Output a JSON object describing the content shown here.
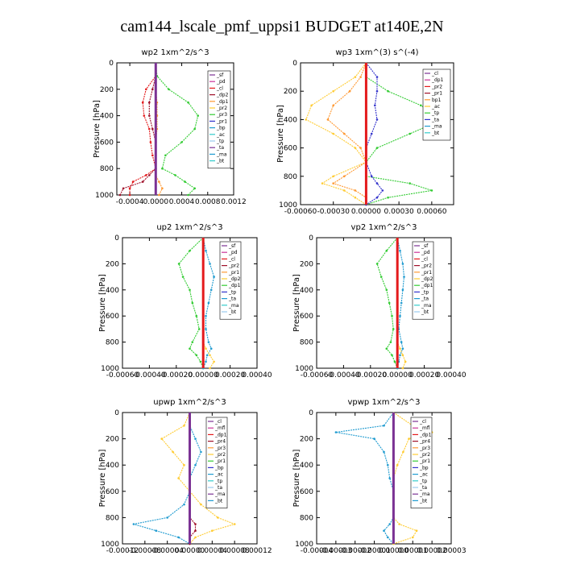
{
  "figure": {
    "title": "cam144_lscale_pmf_uppsi1  BUDGET at140E,2N"
  },
  "colors": {
    "red": "#e41a1c",
    "darkred": "#a0102a",
    "purple": "#7b3294",
    "green": "#33cc33",
    "orange": "#ff9933",
    "yellow": "#ffcc33",
    "blue": "#3333cc",
    "teal": "#1f9bd0",
    "cyan": "#33cccc",
    "lightblue": "#99ccee",
    "magenta": "#cc3399"
  },
  "chart_data": [
    {
      "type": "line",
      "title": "wp2   1xm^2/s^3",
      "ylabel": "Pressure [hPa]",
      "xlim": [
        -0.0006,
        0.0012
      ],
      "ylim": [
        1000,
        0
      ],
      "xticks": [
        "-0.0004",
        "0.0000",
        "0.0004",
        "0.0008",
        "0.0012"
      ],
      "xtick_values": [
        -0.0004,
        0.0,
        0.0004,
        0.0008,
        0.0012
      ],
      "yticks": [
        "0",
        "200",
        "400",
        "600",
        "800",
        "1000"
      ],
      "levels": [
        100,
        200,
        300,
        400,
        500,
        600,
        700,
        800,
        850,
        900,
        950,
        1000
      ],
      "legend": [
        "_sf",
        "_pd",
        "_cl",
        "_dp2",
        "_dp1",
        "_pr2",
        "_pr3",
        "_pr1",
        "_bp",
        "_ac",
        "_tp",
        "_ta",
        "_ma",
        "_bt"
      ],
      "series": [
        {
          "name": "_dp1",
          "color": "green",
          "values": [
            2e-05,
            0.0002,
            0.0005,
            0.00065,
            0.0006,
            0.0004,
            0.00015,
            0.0001,
            0.0003,
            0.00045,
            0.0006,
            0.0005
          ]
        },
        {
          "name": "_dp2",
          "color": "red",
          "values": [
            0.0,
            -0.00015,
            -0.0002,
            -0.00018,
            -0.0001,
            -8e-05,
            -5e-05,
            0.0,
            -0.00015,
            -0.00035,
            -0.0004,
            -0.0004
          ]
        },
        {
          "name": "_pr1",
          "color": "darkred",
          "values": [
            0.0,
            -5e-05,
            -0.0001,
            -0.0001,
            -5e-05,
            0.0,
            0.0,
            0.0,
            -0.0001,
            -0.0002,
            -0.0005,
            -0.00055
          ]
        },
        {
          "name": "_pr2",
          "color": "orange",
          "values": [
            0.0,
            0.0,
            2e-05,
            2e-05,
            2e-05,
            0.0,
            0.0,
            0.0,
            0.0,
            5e-05,
            0.0001,
            5e-05
          ]
        },
        {
          "name": "_cl",
          "color": "purple",
          "values": [
            0.0,
            0.0,
            0.0,
            0.0,
            0.0,
            0.0,
            0.0,
            0.0,
            0.0,
            0.0,
            0.0,
            0.0
          ]
        }
      ]
    },
    {
      "type": "line",
      "title": "wp3   1xm^(3) s^(-4)",
      "ylabel": "Pressure [hPa]",
      "xlim": [
        -0.0006,
        0.0008
      ],
      "ylim": [
        1000,
        0
      ],
      "xticks": [
        "-0.00060",
        "-0.00030",
        "0.00000",
        "0.00030",
        "0.00060"
      ],
      "xtick_values": [
        -0.0006,
        -0.0003,
        0.0,
        0.0003,
        0.0006
      ],
      "yticks": [
        "0",
        "200",
        "400",
        "600",
        "800",
        "1000"
      ],
      "levels": [
        100,
        200,
        300,
        400,
        500,
        600,
        700,
        800,
        850,
        900,
        950,
        1000
      ],
      "legend": [
        "_cl",
        "_dp1",
        "_pr2",
        "_pr1",
        "bp1",
        "_ac",
        "_tp",
        "_ta",
        "_ma",
        "_bt"
      ],
      "series": [
        {
          "name": "bp1",
          "color": "green",
          "values": [
            0.0,
            0.0002,
            0.0005,
            0.0007,
            0.0004,
            0.0001,
            0.0,
            0.0,
            0.0004,
            0.0006,
            0.0002,
            0.0
          ]
        },
        {
          "name": "_pr1",
          "color": "yellow",
          "values": [
            -0.0001,
            -0.0003,
            -0.0005,
            -0.00055,
            -0.0003,
            -0.0001,
            0.0,
            -0.0003,
            -0.0004,
            -0.0002,
            -0.0001,
            0.0
          ]
        },
        {
          "name": "_pr2",
          "color": "orange",
          "values": [
            -5e-05,
            -0.00015,
            -0.0003,
            -0.00035,
            -0.0002,
            -5e-05,
            0.0,
            -0.0002,
            -0.0003,
            -0.0001,
            0.0,
            0.0
          ]
        },
        {
          "name": "_tp",
          "color": "blue",
          "values": [
            0.0001,
            0.0001,
            8e-05,
            0.0001,
            5e-05,
            0.0,
            0.0,
            5e-05,
            0.0001,
            0.00015,
            0.0001,
            0.0
          ]
        },
        {
          "name": "_dp1",
          "color": "red",
          "values": [
            0.0,
            0.0,
            0.0,
            0.0,
            0.0,
            0.0,
            0.0,
            0.0,
            0.0,
            0.0,
            0.0,
            0.0
          ]
        }
      ]
    },
    {
      "type": "line",
      "title": "up2   1xm^2/s^3",
      "ylabel": "Pressure [hPa]",
      "xlim": [
        -0.0006,
        0.0004
      ],
      "ylim": [
        1000,
        0
      ],
      "xticks": [
        "-0.00060",
        "-0.00040",
        "-0.00020",
        "0.00000",
        "0.00020",
        "0.00040"
      ],
      "xtick_values": [
        -0.0006,
        -0.0004,
        -0.0002,
        0.0,
        0.0002,
        0.0004
      ],
      "yticks": [
        "0",
        "200",
        "400",
        "600",
        "800",
        "1000"
      ],
      "levels": [
        100,
        200,
        300,
        400,
        500,
        600,
        700,
        800,
        850,
        900,
        950,
        1000
      ],
      "legend": [
        "_sf",
        "_pd",
        "_cl",
        "_pr2",
        "_pr1",
        "_dp2",
        "_dp1",
        "_tp",
        "_ta",
        "_ma",
        "_bt"
      ],
      "series": [
        {
          "name": "_dp1",
          "color": "green",
          "values": [
            -0.0001,
            -0.00018,
            -0.00015,
            -0.0001,
            -8e-05,
            -5e-05,
            -3e-05,
            -8e-05,
            -0.0001,
            -5e-05,
            -2e-05,
            0.0
          ]
        },
        {
          "name": "_tp",
          "color": "teal",
          "values": [
            2e-05,
            5e-05,
            8e-05,
            6e-05,
            4e-05,
            2e-05,
            2e-05,
            4e-05,
            6e-05,
            3e-05,
            2e-05,
            0.0
          ]
        },
        {
          "name": "_pr1",
          "color": "yellow",
          "values": [
            0.0,
            0.0,
            0.0,
            0.0,
            0.0,
            0.0,
            0.0,
            0.0,
            2e-05,
            5e-05,
            8e-05,
            5e-05
          ]
        },
        {
          "name": "_dp2",
          "color": "red",
          "values": [
            0.0,
            0.0,
            0.0,
            0.0,
            0.0,
            0.0,
            0.0,
            0.0,
            0.0,
            0.0,
            0.0,
            0.0
          ]
        }
      ]
    },
    {
      "type": "line",
      "title": "vp2   1xm^2/s^3",
      "ylabel": "Pressure [hPa]",
      "xlim": [
        -0.0006,
        0.0004
      ],
      "ylim": [
        1000,
        0
      ],
      "xticks": [
        "-0.00060",
        "-0.00040",
        "-0.00020",
        "0.00000",
        "0.00020",
        "0.00040"
      ],
      "xtick_values": [
        -0.0006,
        -0.0004,
        -0.0002,
        0.0,
        0.0002,
        0.0004
      ],
      "yticks": [
        "0",
        "200",
        "400",
        "600",
        "800",
        "1000"
      ],
      "levels": [
        100,
        200,
        300,
        400,
        500,
        600,
        700,
        800,
        850,
        900,
        950,
        1000
      ],
      "legend": [
        "_sf",
        "_pd",
        "_cl",
        "_pr2",
        "_pr1",
        "_dp2",
        "_dp1",
        "_tp",
        "_ta",
        "_ma",
        "_bt"
      ],
      "series": [
        {
          "name": "_dp1",
          "color": "green",
          "values": [
            -8e-05,
            -0.00015,
            -0.00012,
            -8e-05,
            -6e-05,
            -4e-05,
            -3e-05,
            -5e-05,
            -8e-05,
            -4e-05,
            -2e-05,
            0.0
          ]
        },
        {
          "name": "_tp",
          "color": "teal",
          "values": [
            2e-05,
            4e-05,
            5e-05,
            4e-05,
            3e-05,
            2e-05,
            1e-05,
            3e-05,
            4e-05,
            2e-05,
            1e-05,
            0.0
          ]
        },
        {
          "name": "_pr1",
          "color": "yellow",
          "values": [
            0.0,
            0.0,
            0.0,
            0.0,
            0.0,
            0.0,
            0.0,
            0.0,
            2e-05,
            4e-05,
            6e-05,
            4e-05
          ]
        },
        {
          "name": "_dp2",
          "color": "red",
          "values": [
            0.0,
            0.0,
            0.0,
            0.0,
            0.0,
            0.0,
            0.0,
            0.0,
            0.0,
            0.0,
            0.0,
            0.0
          ]
        }
      ]
    },
    {
      "type": "line",
      "title": "upwp   1xm^2/s^3",
      "ylabel": "Pressure [hPa]",
      "xlim": [
        -0.00012,
        0.00012
      ],
      "ylim": [
        1000,
        0
      ],
      "xticks": [
        "-0.00012",
        "-0.00008",
        "-0.00004",
        "0.00000",
        "0.00004",
        "0.00008",
        "0.00012"
      ],
      "xtick_values": [
        -0.00012,
        -8e-05,
        -4e-05,
        0.0,
        4e-05,
        8e-05,
        0.00012
      ],
      "yticks": [
        "0",
        "200",
        "400",
        "600",
        "800",
        "1000"
      ],
      "levels": [
        100,
        200,
        300,
        400,
        500,
        600,
        700,
        800,
        850,
        900,
        950,
        1000
      ],
      "legend": [
        "_cl",
        "_mfl",
        "_dp1",
        "_pr4",
        "_pr3",
        "_pr2",
        "_pr1",
        "_bp",
        "_ac",
        "_tp",
        "_ta",
        "_ma",
        "_bt"
      ],
      "series": [
        {
          "name": "_pr1",
          "color": "yellow",
          "values": [
            -1e-05,
            -5e-05,
            -3e-05,
            -1e-05,
            -2e-05,
            0.0,
            2e-05,
            5e-05,
            8e-05,
            4e-05,
            1e-05,
            0.0
          ]
        },
        {
          "name": "_tp",
          "color": "teal",
          "values": [
            0.0,
            1e-05,
            2e-05,
            1e-05,
            0.0,
            0.0,
            -1e-05,
            -4e-05,
            -0.0001,
            -6e-05,
            -2e-05,
            0.0
          ]
        },
        {
          "name": "_dp1",
          "color": "darkred",
          "values": [
            0.0,
            0.0,
            0.0,
            0.0,
            0.0,
            0.0,
            0.0,
            0.0,
            1e-05,
            1e-05,
            0.0,
            0.0
          ]
        },
        {
          "name": "_cl",
          "color": "purple",
          "values": [
            0.0,
            0.0,
            0.0,
            0.0,
            0.0,
            0.0,
            0.0,
            0.0,
            0.0,
            0.0,
            0.0,
            0.0
          ]
        }
      ]
    },
    {
      "type": "line",
      "title": "vpwp   1xm^2/s^3",
      "ylabel": "Pressure [hPa]",
      "xlim": [
        -4e-05,
        3e-05
      ],
      "ylim": [
        1000,
        0
      ],
      "xticks": [
        "-0.00004",
        "-0.00003",
        "-0.00002",
        "-0.00001",
        "0.00000",
        "0.00001",
        "0.00002",
        "0.00003"
      ],
      "xtick_values": [
        -4e-05,
        -3e-05,
        -2e-05,
        -1e-05,
        0.0,
        1e-05,
        2e-05,
        3e-05
      ],
      "yticks": [
        "0",
        "200",
        "400",
        "600",
        "800",
        "1000"
      ],
      "levels": [
        100,
        150,
        200,
        300,
        400,
        500,
        600,
        700,
        800,
        850,
        900,
        950,
        1000
      ],
      "legend": [
        "_cl",
        "_mfl",
        "_dp1",
        "_pr4",
        "_pr3",
        "_pr2",
        "_pr1",
        "_bp",
        "_ac",
        "_tp",
        "_ta",
        "_ma",
        "_bt"
      ],
      "series": [
        {
          "name": "_tp",
          "color": "teal",
          "values": [
            -5e-06,
            -3e-05,
            -1e-05,
            -5e-06,
            -3e-06,
            -2e-06,
            0.0,
            0.0,
            0.0,
            -2e-06,
            -5e-06,
            -3e-06,
            0.0
          ]
        },
        {
          "name": "_pr1",
          "color": "yellow",
          "values": [
            1e-05,
            2e-05,
            8e-06,
            5e-06,
            2e-06,
            0.0,
            0.0,
            0.0,
            0.0,
            3e-06,
            1.2e-05,
            1e-05,
            0.0
          ]
        },
        {
          "name": "_cl",
          "color": "purple",
          "values": [
            0.0,
            0.0,
            0.0,
            0.0,
            0.0,
            0.0,
            0.0,
            0.0,
            0.0,
            0.0,
            0.0,
            0.0,
            0.0
          ]
        }
      ]
    }
  ]
}
